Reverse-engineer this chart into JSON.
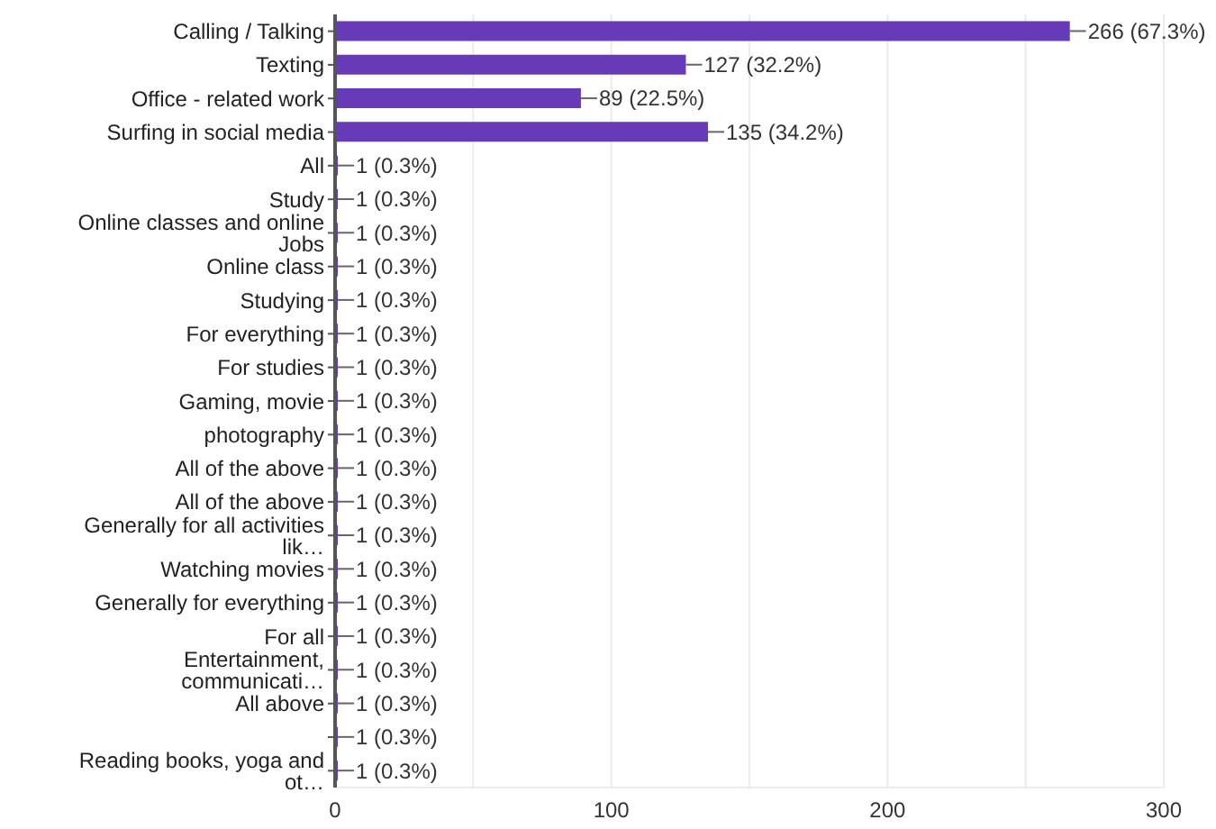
{
  "chart_data": {
    "type": "bar",
    "orientation": "horizontal",
    "categories": [
      "Calling / Talking",
      "Texting",
      "Office - related work",
      "Surfing in social media",
      "All",
      "Study",
      "Online classes and online Jobs",
      "Online class",
      "Studying",
      "For everything",
      "For studies",
      "Gaming, movie",
      "photography",
      "All of the above",
      "All of the above",
      "Generally for all activities lik…",
      "Watching movies",
      "Generally for everything",
      "For all",
      "Entertainment, communicati…",
      "All above",
      null,
      "Reading books, yoga and ot…"
    ],
    "values": [
      266,
      127,
      89,
      135,
      1,
      1,
      1,
      1,
      1,
      1,
      1,
      1,
      1,
      1,
      1,
      1,
      1,
      1,
      1,
      1,
      1,
      1,
      1
    ],
    "value_labels": [
      "266 (67.3%)",
      "127 (32.2%)",
      "89 (22.5%)",
      "135 (34.2%)",
      "1 (0.3%)",
      "1 (0.3%)",
      "1 (0.3%)",
      "1 (0.3%)",
      "1 (0.3%)",
      "1 (0.3%)",
      "1 (0.3%)",
      "1 (0.3%)",
      "1 (0.3%)",
      "1 (0.3%)",
      "1 (0.3%)",
      "1 (0.3%)",
      "1 (0.3%)",
      "1 (0.3%)",
      "1 (0.3%)",
      "1 (0.3%)",
      "1 (0.3%)",
      "1 (0.3%)",
      "1 (0.3%)"
    ],
    "color": "#673ab7",
    "xlim": [
      0,
      300
    ],
    "xticks": [
      0,
      {
        "value": 50,
        "label": null
      },
      100,
      {
        "value": 150,
        "label": null
      },
      200,
      {
        "value": 250,
        "label": null
      },
      300
    ],
    "grid": "x"
  }
}
